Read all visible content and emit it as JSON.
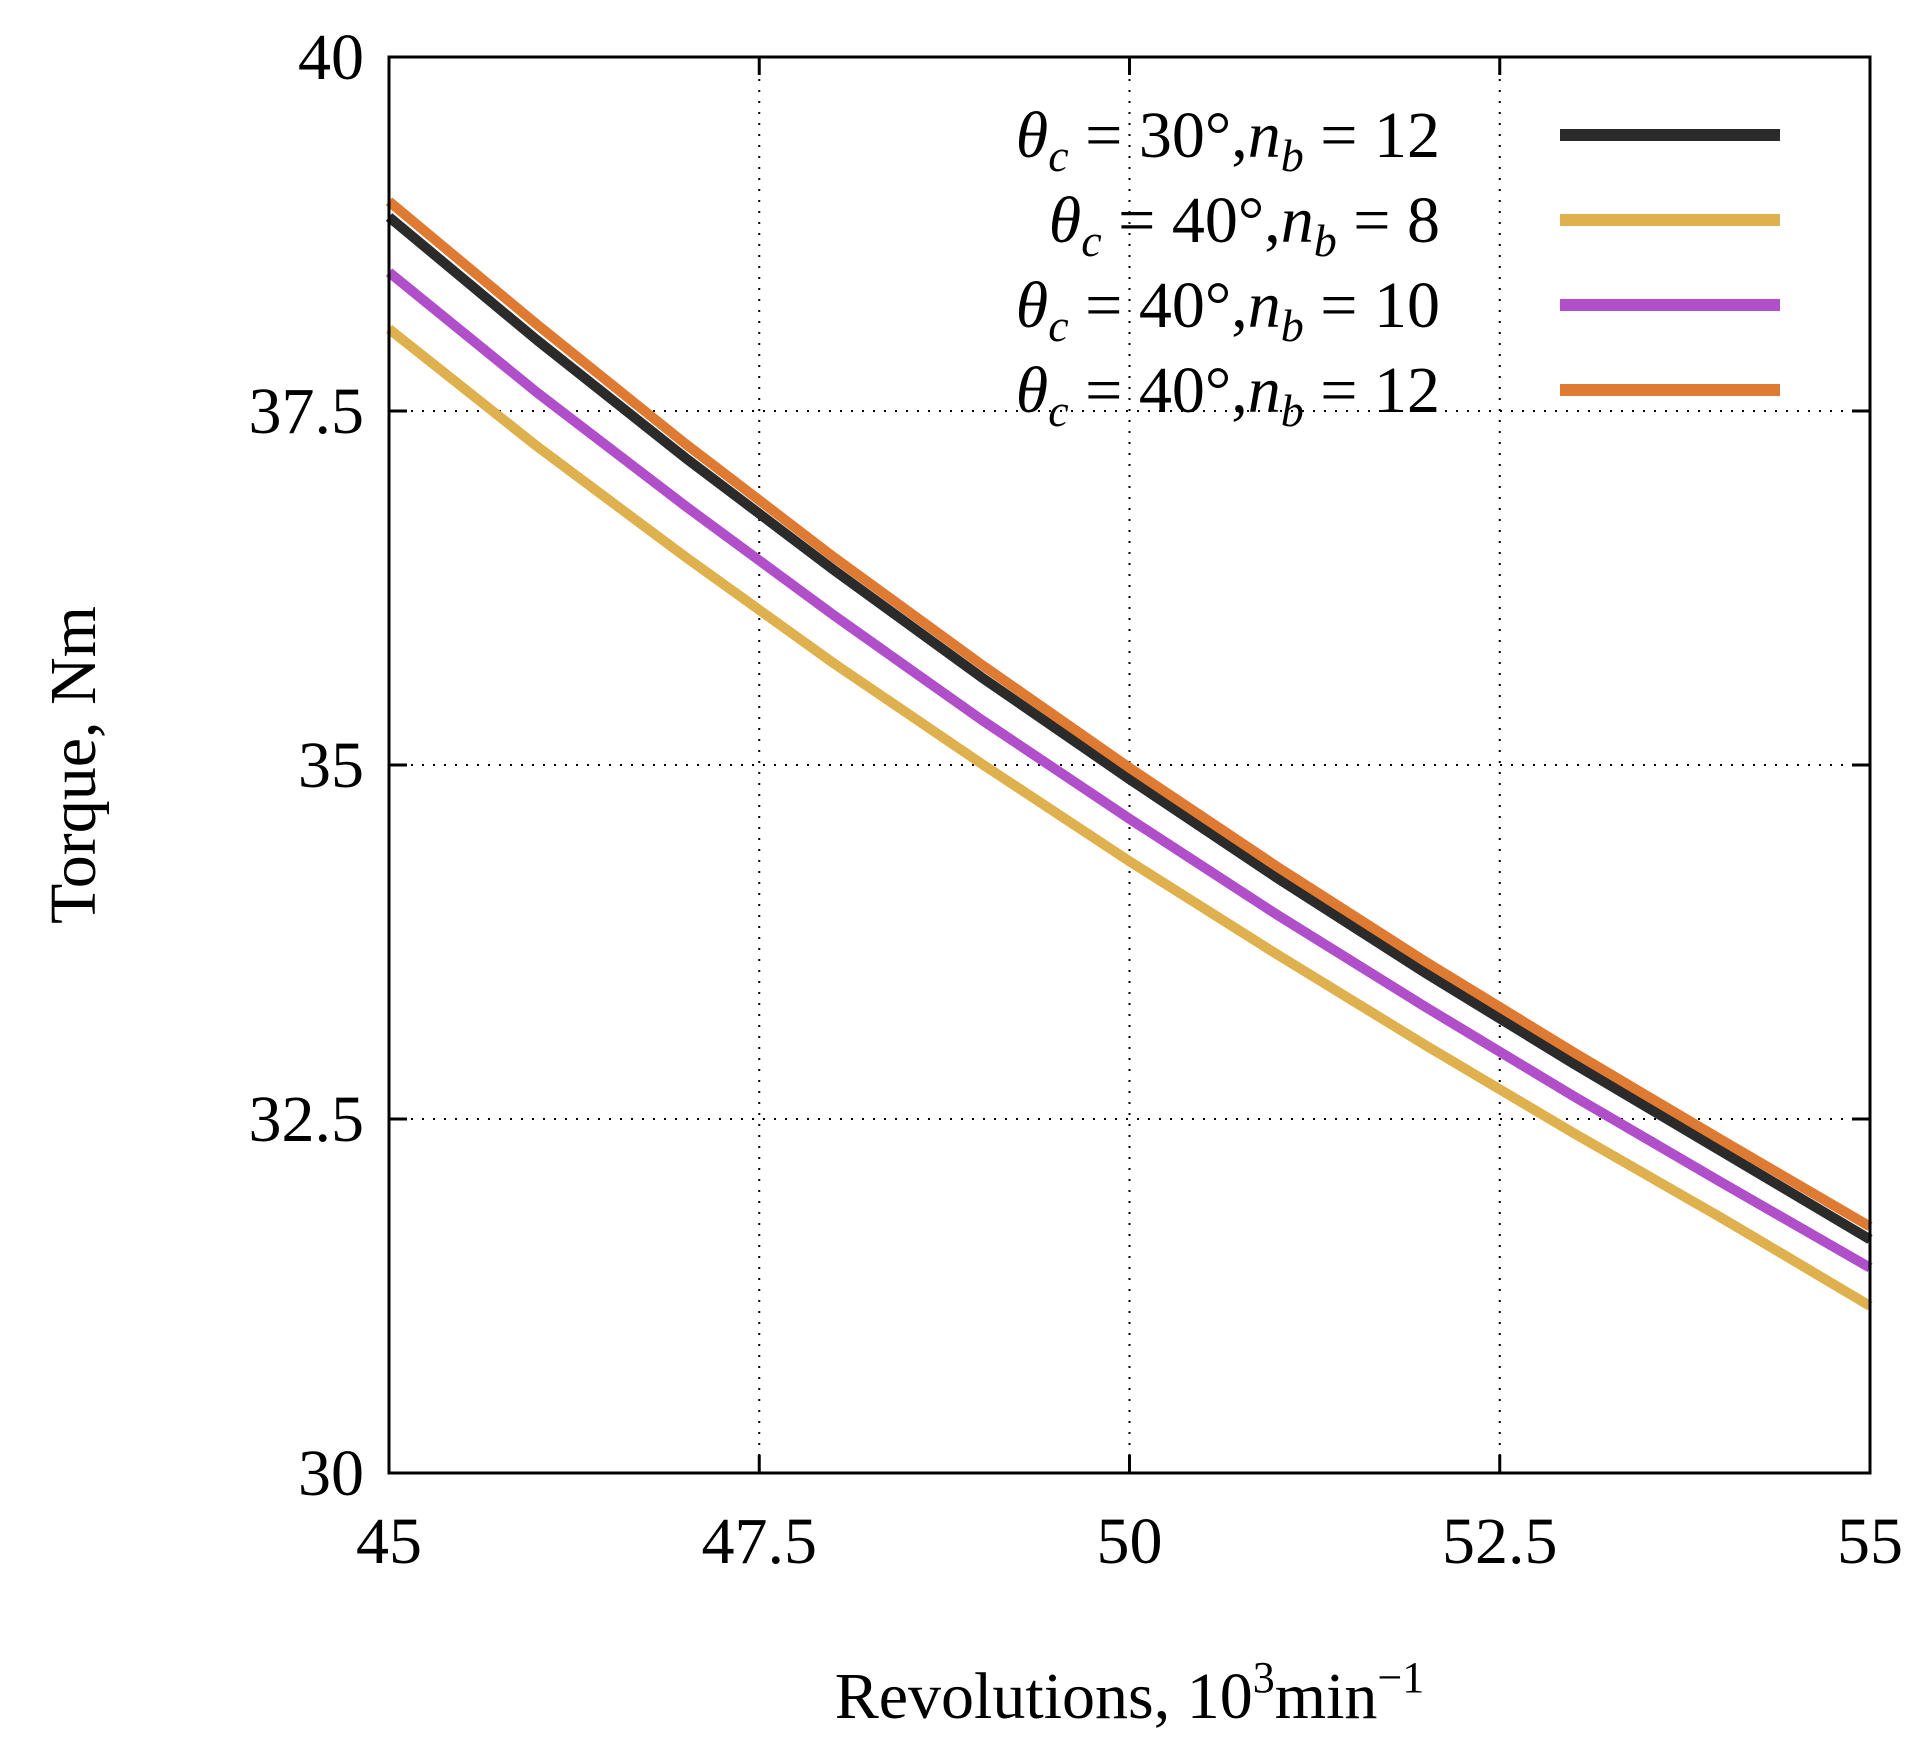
{
  "chart_data": {
    "type": "line",
    "xlabel": "Revolutions, 10",
    "xlabel_exponent": "3",
    "xlabel_unit": "min",
    "xlabel_unit_exponent": "−1",
    "ylabel": "Torque, Nm",
    "xlim": [
      45,
      55
    ],
    "ylim": [
      30,
      40
    ],
    "xticks": [
      "45",
      "47.5",
      "50",
      "52.5",
      "55"
    ],
    "yticks": [
      "30",
      "32.5",
      "35",
      "37.5",
      "40"
    ],
    "grid": true,
    "legend_position": "top-right",
    "x": [
      45,
      46,
      47,
      48,
      49,
      50,
      51,
      52,
      53,
      54,
      55
    ],
    "series": [
      {
        "theta": "30°",
        "nb": "12",
        "color": "#2b2b2b",
        "values": [
          38.87,
          38.0,
          37.17,
          36.38,
          35.62,
          34.9,
          34.2,
          33.53,
          32.89,
          32.27,
          31.65
        ]
      },
      {
        "theta": "40°",
        "nb": "8",
        "color": "#dfb14e",
        "values": [
          38.08,
          37.25,
          36.47,
          35.72,
          35.01,
          34.32,
          33.66,
          33.02,
          32.4,
          31.8,
          31.18
        ]
      },
      {
        "theta": "40°",
        "nb": "10",
        "color": "#b04fc9",
        "values": [
          38.48,
          37.63,
          36.83,
          36.06,
          35.32,
          34.62,
          33.94,
          33.29,
          32.66,
          32.05,
          31.45
        ]
      },
      {
        "theta": "40°",
        "nb": "12",
        "color": "#df7a32",
        "values": [
          38.98,
          38.11,
          37.27,
          36.47,
          35.71,
          34.98,
          34.28,
          33.61,
          32.97,
          32.35,
          31.74
        ]
      }
    ]
  }
}
